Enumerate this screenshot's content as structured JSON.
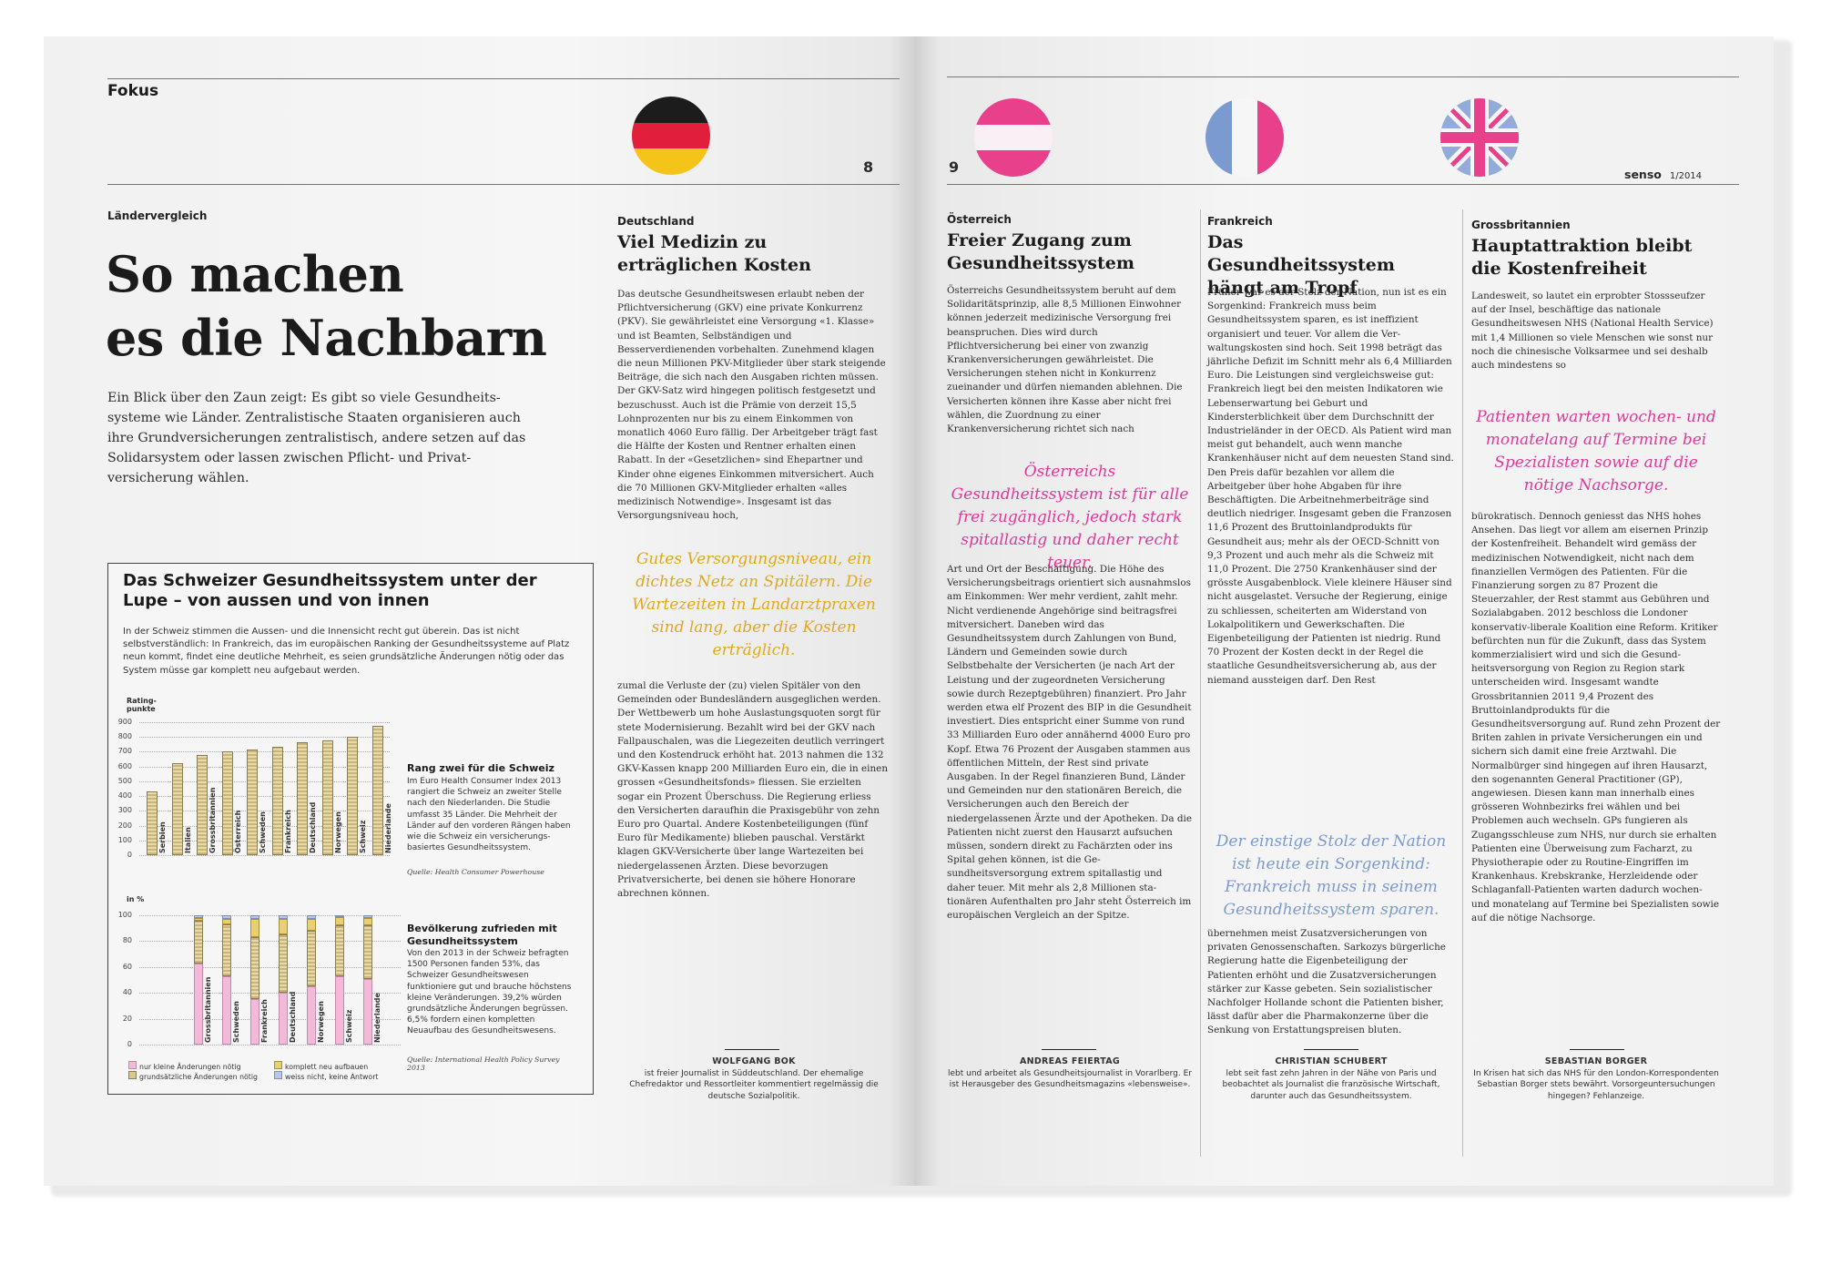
{
  "left_page": {
    "section": "Fokus",
    "page_number": "8",
    "kicker": "Ländervergleich",
    "title_line1": "So machen",
    "title_line2": "es die Nachbarn",
    "lead": "Ein Blick über den Zaun zeigt: Es gibt so viele Gesundheits­systeme wie Länder. Zentralistische Staaten organisieren auch ihre Grundversicherungen zentralistisch, andere setzen auf das Solidarsystem oder lassen zwischen Pflicht- und Privat­versicherung wählen."
  },
  "infobox": {
    "title": "Das Schweizer Gesundheitssystem unter der Lupe – von aussen und von innen",
    "intro": "In der Schweiz stimmen die Aussen- und die Innensicht recht gut überein. Das ist nicht selbstverständlich: In Frankreich, das im europäischen Ranking der Gesundheits­systeme auf Platz neun kommt, findet eine deutliche Mehrheit, es seien grundsätzliche Änderungen nötig oder das System müsse gar komplett neu aufgebaut werden.",
    "chart1_caption_title": "Rang zwei für die Schweiz",
    "chart1_caption": "Im Euro Health Consumer Index 2013 rangiert die Schweiz an zweiter Stelle nach den Nieder­landen. Die Studie umfasst 35 Länder. Die Mehrheit der Länder auf den vorderen Rängen haben wie die Schweiz ein versicherungs­basiertes Gesundheitssystem.",
    "chart1_source": "Quelle: Health Consumer Powerhouse",
    "chart2_caption_title": "Bevölkerung zufrieden mit Gesundheitssystem",
    "chart2_caption": "Von den 2013 in der Schweiz befragten 1500 Personen fanden 53%, das Schweizer Gesund­heitswesen funktioniere gut und brauche höchstens kleine Verände­rungen. 39,2% würden grund­sätzliche Änderungen begrüssen. 6,5% fordern einen kompletten Neuaufbau des Gesundheitswesens.",
    "chart2_source": "Quelle: International Health Policy Survey 2013",
    "legend": [
      "nur kleine Änderungen nötig",
      "grundsätzliche Änderungen nötig",
      "komplett neu aufbauen",
      "weiss nicht, keine Antwort"
    ]
  },
  "chart_data": [
    {
      "type": "bar",
      "ylabel": "Rating-punkte",
      "ylim": [
        0,
        900
      ],
      "yticks": [
        "900",
        "800",
        "700",
        "600",
        "500",
        "400",
        "300",
        "200",
        "100",
        "0"
      ],
      "categories": [
        "Serbien",
        "Italien",
        "Grossbritannien",
        "Österreich",
        "Schweden",
        "Frankreich",
        "Deutschland",
        "Norwegen",
        "Schweiz",
        "Niederlande"
      ],
      "values": [
        430,
        625,
        680,
        700,
        715,
        735,
        765,
        775,
        800,
        875
      ]
    },
    {
      "type": "bar",
      "stacked": true,
      "ylabel": "in %",
      "ylim": [
        0,
        100
      ],
      "yticks": [
        "100",
        "80",
        "60",
        "40",
        "20",
        "0"
      ],
      "categories": [
        "Grossbritannien",
        "Schweden",
        "Frankreich",
        "Deutschland",
        "Norwegen",
        "Schweiz",
        "Niederlande"
      ],
      "series": [
        {
          "name": "nur kleine Änderungen nötig",
          "values": [
            63,
            53,
            35,
            40,
            45,
            53,
            51
          ]
        },
        {
          "name": "grundsätzliche Änderungen nötig",
          "values": [
            33,
            40,
            48,
            45,
            43,
            39.2,
            41
          ]
        },
        {
          "name": "komplett neu aufbauen",
          "values": [
            2,
            4,
            14,
            12,
            9,
            6.5,
            6
          ]
        },
        {
          "name": "weiss nicht, keine Antwort",
          "values": [
            2,
            3,
            3,
            3,
            3,
            1.3,
            2
          ]
        }
      ]
    }
  ],
  "deutschland": {
    "kicker": "Deutschland",
    "headline": "Viel Medizin zu erträglichen Kosten",
    "body1": "Das deutsche Gesundheitswesen erlaubt neben der Pflichtversicherung (GKV) eine private Konkurrenz (PKV). Sie gewährleistet eine Versorgung «1. Klasse» und ist Beamten, Selb­ständigen und Besserverdienenden vorbehal­ten. Zunehmend klagen die neun Millionen PKV-Mitglieder über stark steigende Beiträge, die sich nach den Ausgaben richten müssen. Der GKV-Satz wird hingegen politisch festge­setzt und bezuschusst. Auch ist die Prämie von derzeit 15,5 Lohnprozenten nur bis zu einem Einkommen von monatlich 4060 Euro fällig. Der Arbeitgeber trägt fast die Hälfte der Kosten und Rentner erhalten einen Rabatt. In der «Gesetzlichen» sind Ehepartner und Kinder ohne eigenes Einkommen mitversichert. Auch die 70 Millionen GKV-Mitglieder erhalten «alles medizinisch Notwendige». Insgesamt ist das Versorgungsniveau hoch,",
    "quote": "Gutes Versorgungsniveau, ein dichtes Netz an Spitälern. Die Wartezeiten in Landarztpraxen sind lang, aber die Kosten erträglich.",
    "body2": "zumal die Verluste der (zu) vielen Spitäler von den Gemeinden oder Bundesländern ausge­glichen werden. Der Wettbewerb um hohe Auslastungsquoten sorgt für stete Modernisie­rung. Bezahlt wird bei der GKV nach Fallpau­schalen, was die Liegezeiten deutlich verrin­gert und den Kostendruck erhöht hat. 2013 nahmen die 132 GKV-Kassen knapp 200 Milliarden Euro ein, die in einen grossen «Gesundheitsfonds» fliessen. Sie erzielten sogar ein Prozent Überschuss. Die Regierung erliess den Versicherten daraufhin die Praxis­gebühr von zehn Euro pro Quartal. Andere Kostenbeteiligungen (fünf Euro für Medika­mente) blieben pauschal. Verstärkt klagen GKV-Versicherte über lange Wartezeiten bei niedergelassenen Ärzten. Diese bevorzugen Privatversicherte, bei denen sie höhere Hono­rare abrechnen können.",
    "author_name": "WOLFGANG BOK",
    "author_bio": "ist freier Journalist in Süddeutschland. Der ehemalige Chefredaktor und Ressortleiter kommentiert regelmässig die deutsche Sozialpolitik."
  },
  "right_page": {
    "page_number": "9",
    "brand": "senso",
    "issue": "1/2014"
  },
  "oesterreich": {
    "kicker": "Österreich",
    "headline": "Freier Zugang zum Gesundheitssystem",
    "body1": "Österreichs Gesundheitssystem beruht auf dem Solidaritätsprinzip, alle 8,5 Millionen Einwohner können jederzeit medizinische Versorgung frei beanspruchen. Dies wird durch Pflichtversicherung bei einer von zwanzig Krankenversicherungen gewährleistet. Die Versicherungen stehen nicht in Konkurrenz zueinander und dürfen niemanden ablehnen. Die Versicherten können ihre Kasse aber nicht frei wählen, die Zuordnung zu einer Krankenversicherung richtet sich nach",
    "quote": "Österreichs Gesundheitssystem ist für alle frei zugänglich, jedoch stark spitallastig und daher recht teuer.",
    "body2": "Art und Ort der Beschäftigung. Die Höhe des Versicherungsbeitrags orientiert sich ausnahmslos am Einkommen: Wer mehr ver­dient, zahlt mehr. Nicht verdienende Ange­hörige sind beitragsfrei mitversichert. Daneben wird das Gesundheitssystem durch Zahlungen von Bund, Ländern und Gemeinden sowie durch Selbstbehalte der Versicherten (je nach Art der Leistung und der zugeordneten Versicherung sowie durch Rezeptgebühren) finanziert. Pro Jahr werden etwa elf Prozent des BIP in die Gesundheit investiert. Dies entspricht einer Summe von rund 33 Milliarden Euro oder annähernd 4000 Euro pro Kopf. Etwa 76 Pro­zent der Ausgaben stammen aus öffentlichen Mitteln, der Rest sind private Ausgaben. In der Regel finanzieren Bund, Länder und Gemeinden nur den stationären Bereich, die Versicherungen auch den Bereich der niedergelassenen Ärzte und der Apotheken. Da die Patienten nicht zuerst den Hausarzt aufsuchen müssen, sondern direkt zu Fachärz­ten oder ins Spital gehen können, ist die Ge­sundheitsversorgung extrem spitallastig und daher teuer. Mit mehr als 2,8 Millionen sta­tionären Aufenthalten pro Jahr steht Österreich im europäischen Vergleich an der Spitze.",
    "author_name": "ANDREAS FEIERTAG",
    "author_bio": "lebt und arbeitet als Gesundheitsjournalist in Vorarlberg. Er ist Herausgeber des Gesundheitsmagazins «lebensweise»."
  },
  "frankreich": {
    "kicker": "Frankreich",
    "headline": "Das Gesundheitssystem hängt am Tropf",
    "body1": "Früher war es der Stolz der Nation, nun ist es ein Sorgenkind: Frankreich muss beim Gesundheitssystem sparen, es ist ineffizient organisiert und teuer. Vor allem die Ver­waltungskosten sind hoch. Seit 1998 beträgt das jährliche Defizit im Schnitt mehr als 6,4 Milliarden Euro. Die Leistungen sind ver­gleichsweise gut: Frankreich liegt bei den meisten Indikatoren wie Lebenserwartung bei Geburt und Kindersterblichkeit über dem Durchschnitt der Industrieländer in der OECD. Als Patient wird man meist gut behan­delt, auch wenn manche Krankenhäuser nicht auf dem neuesten Stand sind. Den Preis dafür bezahlen vor allem die Arbeitgeber über hohe Abgaben für ihre Beschäftigten. Die Arbeitnehmerbeiträge sind deutlich niedriger. Insgesamt geben die Franzosen 11,6 Prozent des Bruttoinlandprodukts für Gesundheit aus; mehr als der OECD-Schnitt von 9,3 Prozent und auch mehr als die Schweiz mit 11,0 Prozent. Die 2750 Krankenhäuser sind der grösste Ausgabenblock. Viele kleinere Häuser sind nicht ausgelastet. Versuche der Regierung, ei­nige zu schliessen, scheiterten am Widerstand von Lokalpolitikern und Gewerkschaften. Die Eigenbeteiligung der Patienten ist niedrig. Rund 70 Prozent der Kosten deckt in der Regel die staatliche Gesundheitsversicherung ab, aus der niemand aussteigen darf. Den Rest",
    "quote": "Der einstige Stolz der Nation ist heute ein Sorgenkind: Frankreich muss in seinem Gesundheitssystem sparen.",
    "body2": "übernehmen meist Zusatzversicherungen von privaten Genossenschaften. Sarkozys bürger­liche Regierung hatte die Eigenbeteiligung der Patienten erhöht und die Zusatzversiche­rungen stärker zur Kasse gebeten. Sein sozialistischer Nachfolger Hollande schont die Patienten bisher, lässt dafür aber die Pharmakonzerne über die Senkung von Er­stattungspreisen bluten.",
    "author_name": "CHRISTIAN SCHUBERT",
    "author_bio": "lebt seit fast zehn Jahren in der Nähe von Paris und beobachtet als Journalist die französische Wirtschaft, darunter auch das Gesundheitssystem."
  },
  "grossbritannien": {
    "kicker": "Grossbritannien",
    "headline": "Hauptattraktion bleibt die Kostenfreiheit",
    "body1": "Landesweit, so lautet ein erprobter Stoss­seufzer auf der Insel, beschäftige das nationale Gesundheitswesen NHS (National Health Service) mit 1,4 Millionen so viele Menschen wie sonst nur noch die chinesische Volks­armee und sei deshalb auch mindestens so",
    "quote": "Patienten warten wochen- und monatelang auf Termine bei Spezialisten sowie auf die nötige Nachsorge.",
    "body2": "bürokratisch. Dennoch geniesst das NHS hohes Ansehen. Das liegt vor allem am eiser­nen Prinzip der Kostenfreiheit. Behandelt wird gemäss der medizinischen Notwendig­keit, nicht nach dem finanziellen Vermögen des Patienten. Für die Finanzierung sorgen zu 87 Prozent die Steuerzahler, der Rest stammt aus Gebühren und Sozialabgaben. 2012 beschloss die Londoner konservativ-liberale Koalition eine Reform. Kritiker be­fürchten nun für die Zukunft, dass das System kommerzialisiert wird und sich die Gesund­heitsversorgung von Region zu Region stark unterscheiden wird. Insgesamt wandte Grossbritannien 2011 9,4 Prozent des Bruttoinlandprodukts für die Gesundheitsversorgung auf. Rund zehn Prozent der Briten zahlen in private Versiche­rungen ein und sichern sich damit eine freie Arztwahl. Die Normalbürger sind hingegen auf ihren Hausarzt, den sogenannten General Practitioner (GP), angewiesen. Diesen kann man innerhalb eines grösseren Wohnbezirks frei wählen und bei Problemen auch wech­seln. GPs fungieren als Zugangsschleuse zum NHS, nur durch sie erhalten Patienten eine Überweisung zum Facharzt, zu Physiothera­pie oder zu Routine-Eingriffen im Kranken­haus. Krebskranke, Herzleidende oder Schlag­anfall-Patienten warten dadurch wochen- und monatelang auf Termine bei Spezialisten sowie auf die nötige Nachsorge.",
    "author_name": "SEBASTIAN BORGER",
    "author_bio": "In Krisen hat sich das NHS für den London-Korrespondenten Sebastian Borger stets bewährt. Vorsorgeuntersuchungen hingegen? Fehlanzeige."
  },
  "colors": {
    "yellow_quote": "#e0a91c",
    "pink_quote": "#e0389a",
    "blue_quote": "#7b9bd0",
    "bar_beige": "#d9c890",
    "bar_pink": "#f3b9d8",
    "bar_blue": "#b8c9e8"
  }
}
